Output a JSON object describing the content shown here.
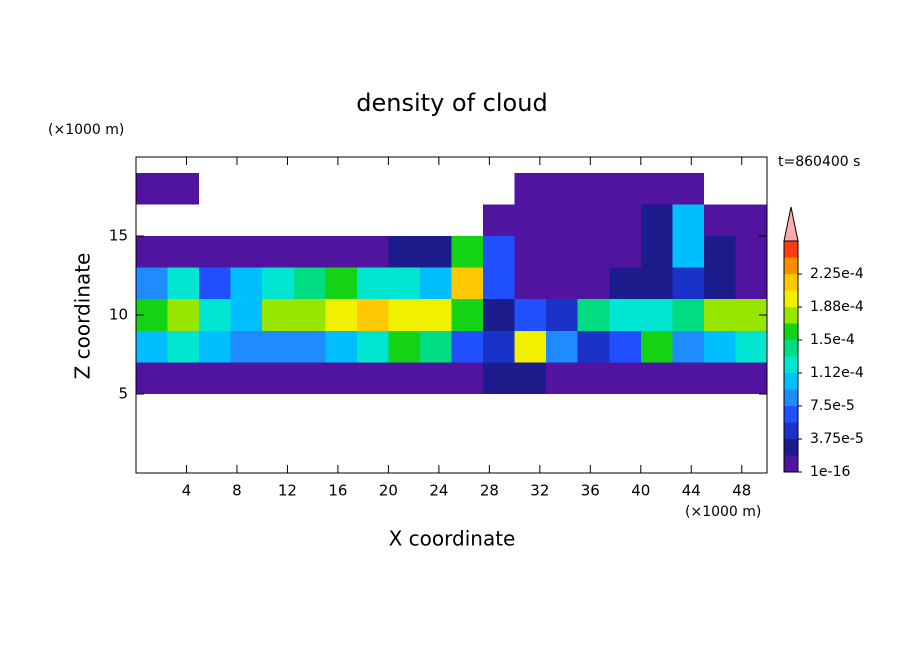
{
  "chart_data": {
    "type": "contour",
    "title": "density of cloud",
    "x_label": "X coordinate",
    "y_label": "Z coordinate",
    "x_unit": "(×1000 m)",
    "y_unit": "(×1000 m)",
    "time_label": "t=860400 s",
    "xlim": [
      0,
      50
    ],
    "ylim": [
      0,
      20
    ],
    "xticks": [
      4,
      8,
      12,
      16,
      20,
      24,
      28,
      32,
      36,
      40,
      44,
      48
    ],
    "yticks": [
      5,
      10,
      15
    ],
    "x_edges": [
      0,
      2.5,
      5,
      7.5,
      10,
      12.5,
      15,
      17.5,
      20,
      22.5,
      25,
      27.5,
      30,
      32.5,
      35,
      37.5,
      40,
      42.5,
      45,
      47.5,
      50
    ],
    "y_edges": [
      5,
      7,
      9,
      11,
      13,
      15,
      17,
      19
    ],
    "z": [
      [
        1e-05,
        1e-05,
        1e-05,
        1e-05,
        1e-05,
        1e-05,
        1e-05,
        1e-05,
        1e-05,
        1e-05,
        1e-05,
        2e-05,
        2e-05,
        1e-05,
        1e-05,
        1e-05,
        1e-05,
        1e-05,
        1e-05,
        1e-05
      ],
      [
        0.00011,
        0.00012,
        0.0001,
        9e-05,
        8e-05,
        9e-05,
        0.0001,
        0.00013,
        0.00016,
        0.00014,
        6e-05,
        4e-05,
        0.0002,
        8e-05,
        4e-05,
        6e-05,
        0.00015,
        9e-05,
        0.00011,
        0.00012
      ],
      [
        0.00016,
        0.00018,
        0.00012,
        0.00011,
        0.00017,
        0.00018,
        0.0002,
        0.00021,
        0.00019,
        0.0002,
        0.00015,
        3e-05,
        7e-05,
        5e-05,
        0.00014,
        0.00013,
        0.00012,
        0.00014,
        0.00018,
        0.00017
      ],
      [
        8e-05,
        0.00013,
        6e-05,
        0.00011,
        0.00012,
        0.00014,
        0.00015,
        0.00013,
        0.00012,
        0.0001,
        0.00021,
        6e-05,
        1e-05,
        1e-05,
        1e-05,
        2e-05,
        3e-05,
        4e-05,
        2e-05,
        1e-05
      ],
      [
        1e-05,
        1e-05,
        1e-05,
        1e-05,
        1e-05,
        1e-05,
        1e-05,
        1e-05,
        2e-05,
        3e-05,
        0.00016,
        7e-05,
        1e-05,
        1e-05,
        1e-05,
        1e-05,
        2e-05,
        0.00011,
        2e-05,
        1e-05
      ],
      [
        null,
        null,
        null,
        null,
        null,
        null,
        null,
        null,
        null,
        null,
        null,
        1e-05,
        1e-05,
        1e-05,
        1e-05,
        1e-05,
        3e-05,
        0.00011,
        1e-05,
        1e-05
      ],
      [
        1e-05,
        1e-05,
        null,
        null,
        null,
        null,
        null,
        null,
        null,
        null,
        null,
        null,
        1e-05,
        1e-05,
        1e-05,
        1e-05,
        1e-05,
        1e-05,
        null,
        null
      ]
    ],
    "colorbar": {
      "levels": [
        1e-16,
        1.875e-05,
        3.75e-05,
        5.625e-05,
        7.5e-05,
        9.375e-05,
        0.0001125,
        0.00013125,
        0.00015,
        0.00016875,
        0.0001875,
        0.00020625,
        0.000225,
        0.00024375,
        0.0002625
      ],
      "colors": [
        "#5014a0",
        "#1c1c8c",
        "#1a32c8",
        "#2050ff",
        "#1e8cff",
        "#00beff",
        "#00e6d2",
        "#00dc82",
        "#14d214",
        "#96e600",
        "#f0f000",
        "#ffc800",
        "#ff8c00",
        "#ff3c14"
      ],
      "over_color": "#ffaaaa",
      "ticks": [
        {
          "value": 1e-16,
          "label": "1e-16"
        },
        {
          "value": 3.75e-05,
          "label": "3.75e-5"
        },
        {
          "value": 7.5e-05,
          "label": "7.5e-5"
        },
        {
          "value": 0.0001125,
          "label": "1.12e-4"
        },
        {
          "value": 0.00015,
          "label": "1.5e-4"
        },
        {
          "value": 0.0001875,
          "label": "1.88e-4"
        },
        {
          "value": 0.000225,
          "label": "2.25e-4"
        }
      ]
    }
  }
}
